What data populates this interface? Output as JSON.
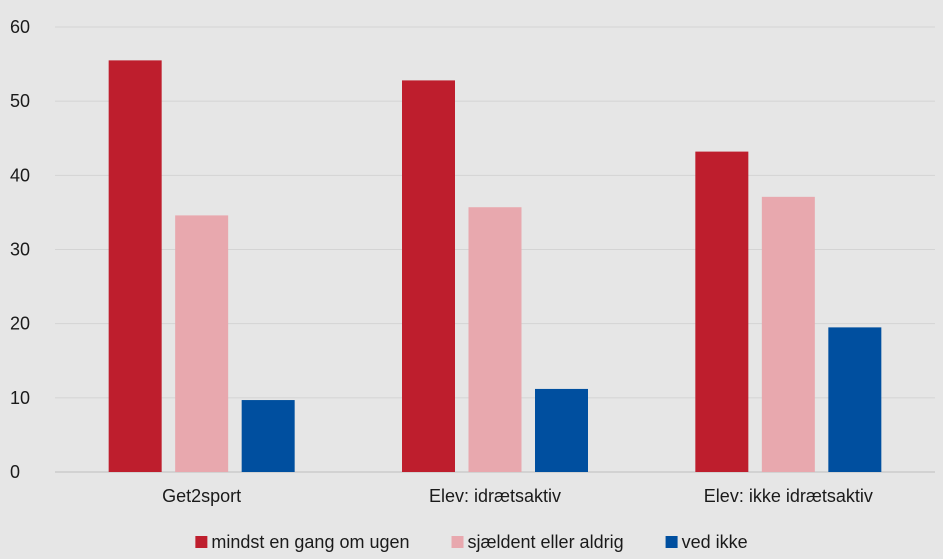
{
  "chart_data": {
    "type": "bar",
    "categories": [
      "Get2sport",
      "Elev: idrætsaktiv",
      "Elev: ikke idrætsaktiv"
    ],
    "series": [
      {
        "name": "mindst en gang om ugen",
        "values": [
          55.5,
          52.8,
          43.2
        ],
        "color": "#be1e2d"
      },
      {
        "name": "sjældent eller aldrig",
        "values": [
          34.6,
          35.7,
          37.1
        ],
        "color": "#e8a8ae"
      },
      {
        "name": "ved ikke",
        "values": [
          9.7,
          11.2,
          19.5
        ],
        "color": "#004f9f"
      }
    ],
    "ylim": [
      0,
      60
    ],
    "yticks": [
      0,
      10,
      20,
      30,
      40,
      50,
      60
    ],
    "grid": true,
    "legend_position": "bottom-center",
    "colors": {
      "background": "#e6e6e6",
      "grid": "#d4d4d4",
      "axis": "#bdbdbd"
    }
  }
}
